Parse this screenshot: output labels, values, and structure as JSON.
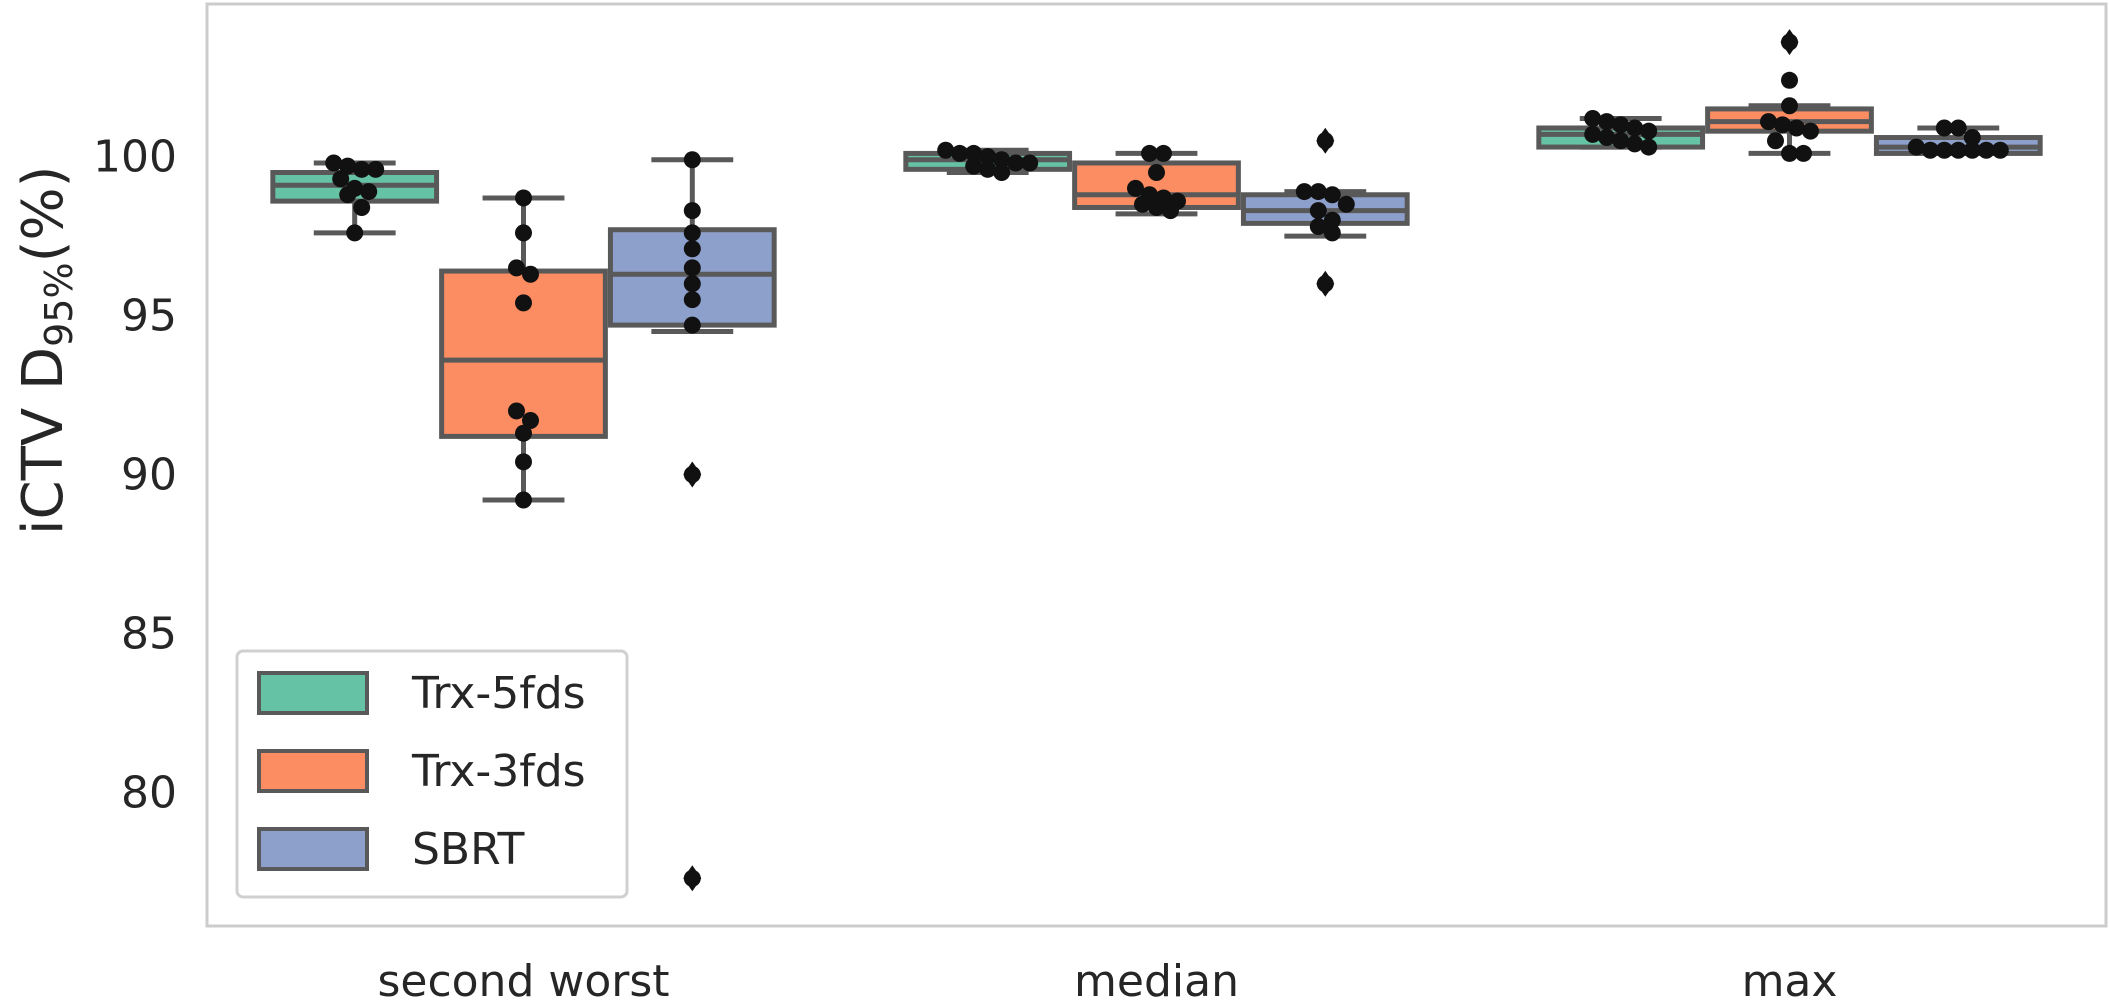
{
  "chart_data": {
    "type": "box",
    "title": "",
    "xlabel": "",
    "ylabel": {
      "main": "iCTV D",
      "subscript": "95%",
      "suffix": "(%)"
    },
    "categories": [
      "second worst",
      "median",
      "max"
    ],
    "ylim": [
      75.8,
      104.8
    ],
    "yticks": [
      80,
      85,
      90,
      95,
      100
    ],
    "grid": false,
    "legend_position": "lower-left",
    "series": [
      {
        "name": "Trx-5fds",
        "color": "#66c2a5",
        "boxes": [
          {
            "whislo": 97.6,
            "q1": 98.6,
            "med": 99.1,
            "q3": 99.5,
            "whishi": 99.8,
            "fliers": [],
            "points": [
              99.8,
              99.7,
              99.6,
              99.6,
              99.3,
              99.0,
              98.9,
              98.8,
              98.4,
              97.6
            ]
          },
          {
            "whislo": 99.5,
            "q1": 99.6,
            "med": 99.9,
            "q3": 100.1,
            "whishi": 100.2,
            "fliers": [],
            "points": [
              100.2,
              100.1,
              100.1,
              100.0,
              99.9,
              99.8,
              99.8,
              99.7,
              99.6,
              99.5
            ]
          },
          {
            "whislo": 100.3,
            "q1": 100.3,
            "med": 100.7,
            "q3": 100.9,
            "whishi": 101.2,
            "fliers": [],
            "points": [
              101.2,
              101.1,
              101.0,
              100.9,
              100.8,
              100.7,
              100.6,
              100.5,
              100.4,
              100.3
            ]
          }
        ]
      },
      {
        "name": "Trx-3fds",
        "color": "#fc8d62",
        "boxes": [
          {
            "whislo": 89.2,
            "q1": 91.2,
            "med": 93.6,
            "q3": 96.4,
            "whishi": 98.7,
            "fliers": [],
            "points": [
              98.7,
              97.6,
              96.5,
              96.3,
              95.4,
              92.0,
              91.7,
              91.3,
              90.4,
              89.2
            ]
          },
          {
            "whislo": 98.2,
            "q1": 98.4,
            "med": 98.8,
            "q3": 99.8,
            "whishi": 100.1,
            "fliers": [],
            "points": [
              100.1,
              100.1,
              99.5,
              99.0,
              98.8,
              98.7,
              98.6,
              98.5,
              98.4,
              98.3
            ]
          },
          {
            "whislo": 100.1,
            "q1": 100.8,
            "med": 101.1,
            "q3": 101.5,
            "whishi": 101.6,
            "fliers": [
              103.6
            ],
            "points": [
              103.6,
              102.4,
              101.6,
              101.1,
              101.0,
              100.9,
              100.8,
              100.5,
              100.1,
              100.1
            ]
          }
        ]
      },
      {
        "name": "SBRT",
        "color": "#8da0cb",
        "boxes": [
          {
            "whislo": 94.5,
            "q1": 94.7,
            "med": 96.3,
            "q3": 97.7,
            "whishi": 99.9,
            "fliers": [
              90.0,
              77.3
            ],
            "points": [
              99.9,
              98.3,
              97.6,
              97.1,
              96.5,
              96.0,
              95.5,
              94.7,
              90.0,
              77.3
            ]
          },
          {
            "whislo": 97.5,
            "q1": 97.9,
            "med": 98.3,
            "q3": 98.8,
            "whishi": 98.9,
            "fliers": [
              100.5,
              96.0
            ],
            "points": [
              100.5,
              98.9,
              98.9,
              98.8,
              98.5,
              98.3,
              98.0,
              97.8,
              97.6,
              96.0
            ]
          },
          {
            "whislo": 100.1,
            "q1": 100.1,
            "med": 100.3,
            "q3": 100.6,
            "whishi": 100.9,
            "fliers": [],
            "points": [
              100.9,
              100.9,
              100.6,
              100.3,
              100.2,
              100.2,
              100.2,
              100.2,
              100.2,
              100.2
            ]
          }
        ]
      }
    ]
  }
}
